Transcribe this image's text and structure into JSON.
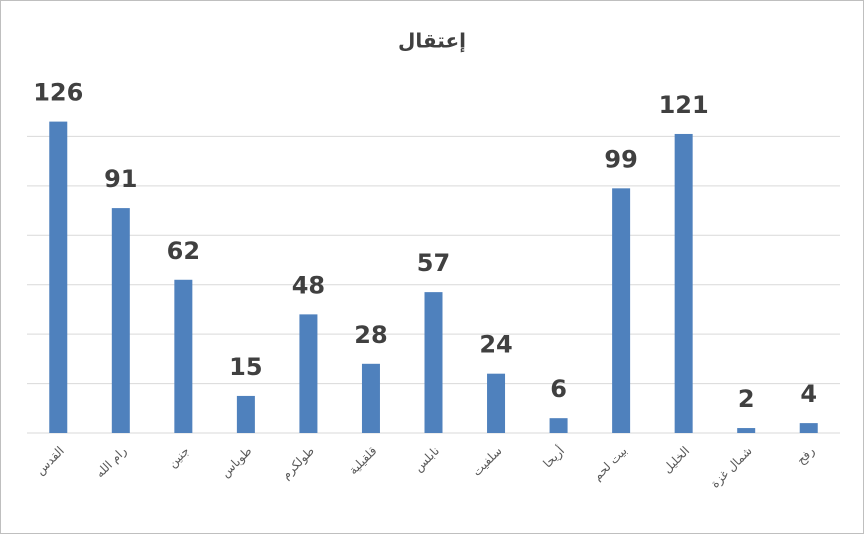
{
  "chart_data": {
    "type": "bar",
    "title": "إعتقال",
    "categories": [
      "القدس",
      "رام الله",
      "جنين",
      "طوباس",
      "طولكرم",
      "قلقيلية",
      "نابلس",
      "سلفيت",
      "أريحا",
      "بيت لحم",
      "الخليل",
      "شمال غزة",
      "رفح"
    ],
    "values": [
      126,
      91,
      62,
      15,
      48,
      28,
      57,
      24,
      6,
      99,
      121,
      2,
      4
    ],
    "color": "#4f81bd",
    "ylim": [
      0,
      140
    ],
    "yticks": [
      0,
      20,
      40,
      60,
      80,
      100,
      120
    ],
    "grid": true
  }
}
